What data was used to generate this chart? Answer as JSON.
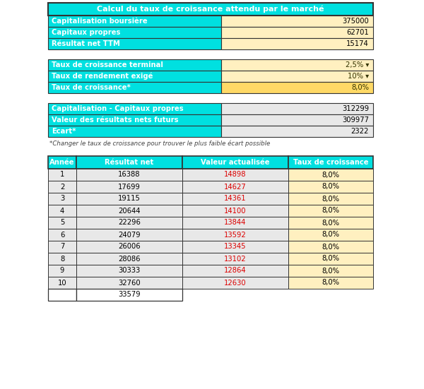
{
  "title": "Calcul du taux de croissance attendu par le marché",
  "cyan": "#00E0E0",
  "light_yellow": "#FFF0C0",
  "highlight_yellow": "#FFD966",
  "white": "#FFFFFF",
  "light_gray": "#E8E8E8",
  "border": "#333333",
  "section1": {
    "rows": [
      {
        "label": "Capitalisation boursière",
        "value": "375000"
      },
      {
        "label": "Capitaux propres",
        "value": "62701"
      },
      {
        "label": "Résultat net TTM",
        "value": "15174"
      }
    ]
  },
  "section2": {
    "rows": [
      {
        "label": "Taux de croissance terminal",
        "value": "2,5%",
        "arrow": true,
        "highlight": false
      },
      {
        "label": "Taux de rendement exigé",
        "value": "10%",
        "arrow": true,
        "highlight": false
      },
      {
        "label": "Taux de croissance*",
        "value": "8,0%",
        "arrow": false,
        "highlight": true
      }
    ]
  },
  "section3": {
    "rows": [
      {
        "label": "Capitalisation - Capitaux propres",
        "value": "312299"
      },
      {
        "label": "Valeur des résultats nets futurs",
        "value": "309977"
      },
      {
        "label": "Ecart*",
        "value": "2322"
      }
    ]
  },
  "footnote": "*Changer le taux de croissance pour trouver le plus faible écart possible",
  "table": {
    "headers": [
      "Année",
      "Résultat net",
      "Valeur actualisée",
      "Taux de croissance"
    ],
    "rows": [
      [
        1,
        "16388",
        "14898",
        "8,0%"
      ],
      [
        2,
        "17699",
        "14627",
        "8,0%"
      ],
      [
        3,
        "19115",
        "14361",
        "8,0%"
      ],
      [
        4,
        "20644",
        "14100",
        "8,0%"
      ],
      [
        5,
        "22296",
        "13844",
        "8,0%"
      ],
      [
        6,
        "24079",
        "13592",
        "8,0%"
      ],
      [
        7,
        "26006",
        "13345",
        "8,0%"
      ],
      [
        8,
        "28086",
        "13102",
        "8,0%"
      ],
      [
        9,
        "30333",
        "12864",
        "8,0%"
      ],
      [
        10,
        "32760",
        "12630",
        "8,0%"
      ]
    ],
    "extra_value": "33579"
  }
}
